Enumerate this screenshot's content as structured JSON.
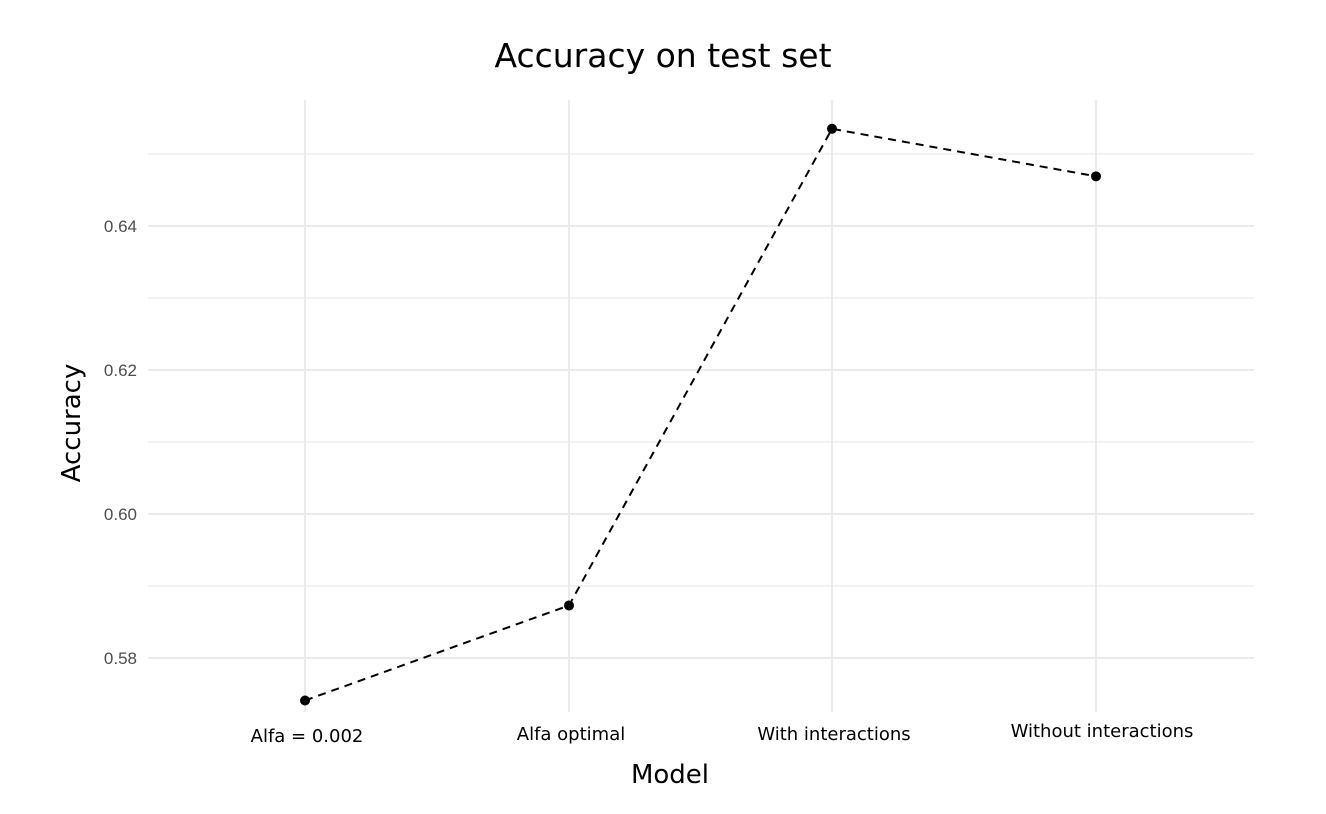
{
  "chart_data": {
    "type": "line",
    "title": "Accuracy on test set",
    "xlabel": "Model",
    "ylabel": "Accuracy",
    "categories": [
      "Alfa = 0.002",
      "Alfa optimal",
      "With interactions",
      "Without interactions"
    ],
    "values": [
      0.5741,
      0.5873,
      0.6535,
      0.6469
    ],
    "y_ticks": [
      "0.58",
      "0.60",
      "0.62",
      "0.64"
    ],
    "ylim": [
      0.5725,
      0.6575
    ],
    "line_style": "dashed",
    "grid": true,
    "colors": {
      "line": "#000000",
      "point": "#000000",
      "grid": "#ebebeb"
    }
  }
}
